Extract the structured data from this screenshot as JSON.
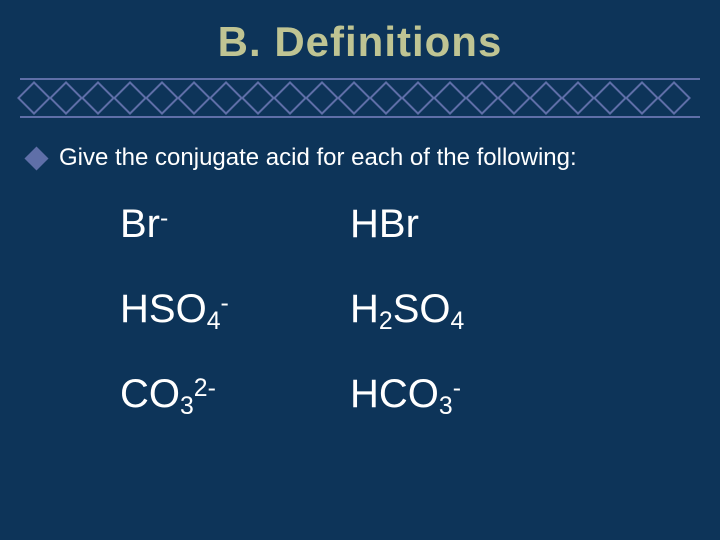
{
  "background_color": "#0d3459",
  "title_color": "#bfc493",
  "divider_color": "#5f6fa8",
  "text_color": "#ffffff",
  "title": "B. Definitions",
  "diamond_count": 21,
  "prompt": "Give the conjugate acid for each of the following:",
  "rows": [
    {
      "left_base": "Br",
      "left_sub": "",
      "left_sup": " -",
      "right_base": "HBr",
      "right_sub": "",
      "right_sup": ""
    },
    {
      "left_base": "HSO",
      "left_sub": "4",
      "left_sup": "-",
      "right_pre": "H",
      "right_presub": "2",
      "right_base": "SO",
      "right_sub": "4",
      "right_sup": ""
    },
    {
      "left_base": "CO",
      "left_sub": "3",
      "left_sup": "2-",
      "right_pre": "HCO",
      "right_presub": "3",
      "right_base": "",
      "right_sub": "",
      "right_sup": "-"
    }
  ],
  "fonts": {
    "title_size": 42,
    "prompt_size": 24,
    "cell_size": 40
  }
}
